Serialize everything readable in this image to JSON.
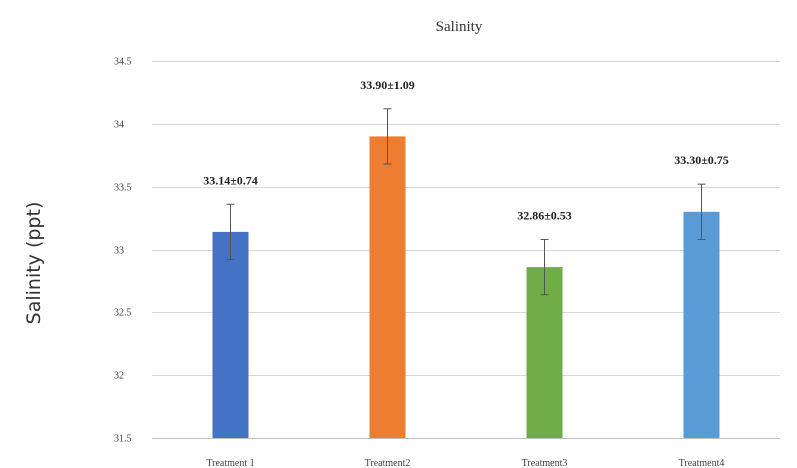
{
  "chart_data": {
    "type": "bar",
    "title": "Salinity",
    "xlabel": "",
    "ylabel": "Salinity (ppt)",
    "ylim": [
      31.5,
      34.5
    ],
    "yticks": [
      "31.5",
      "32",
      "32.5",
      "33",
      "33.5",
      "34",
      "34.5"
    ],
    "grid": true,
    "categories": [
      "Treatment 1",
      "Treatment2",
      "Treatment3",
      "Treatment4"
    ],
    "values": [
      33.14,
      33.9,
      32.86,
      33.3
    ],
    "errors": [
      0.22,
      0.22,
      0.22,
      0.22
    ],
    "data_labels": [
      "33.14±0.74",
      "33.90±1.09",
      "32.86±0.53",
      "33.30±0.75"
    ],
    "colors": [
      "#4472c4",
      "#ed7d31",
      "#70ad47",
      "#5b9bd5"
    ]
  }
}
